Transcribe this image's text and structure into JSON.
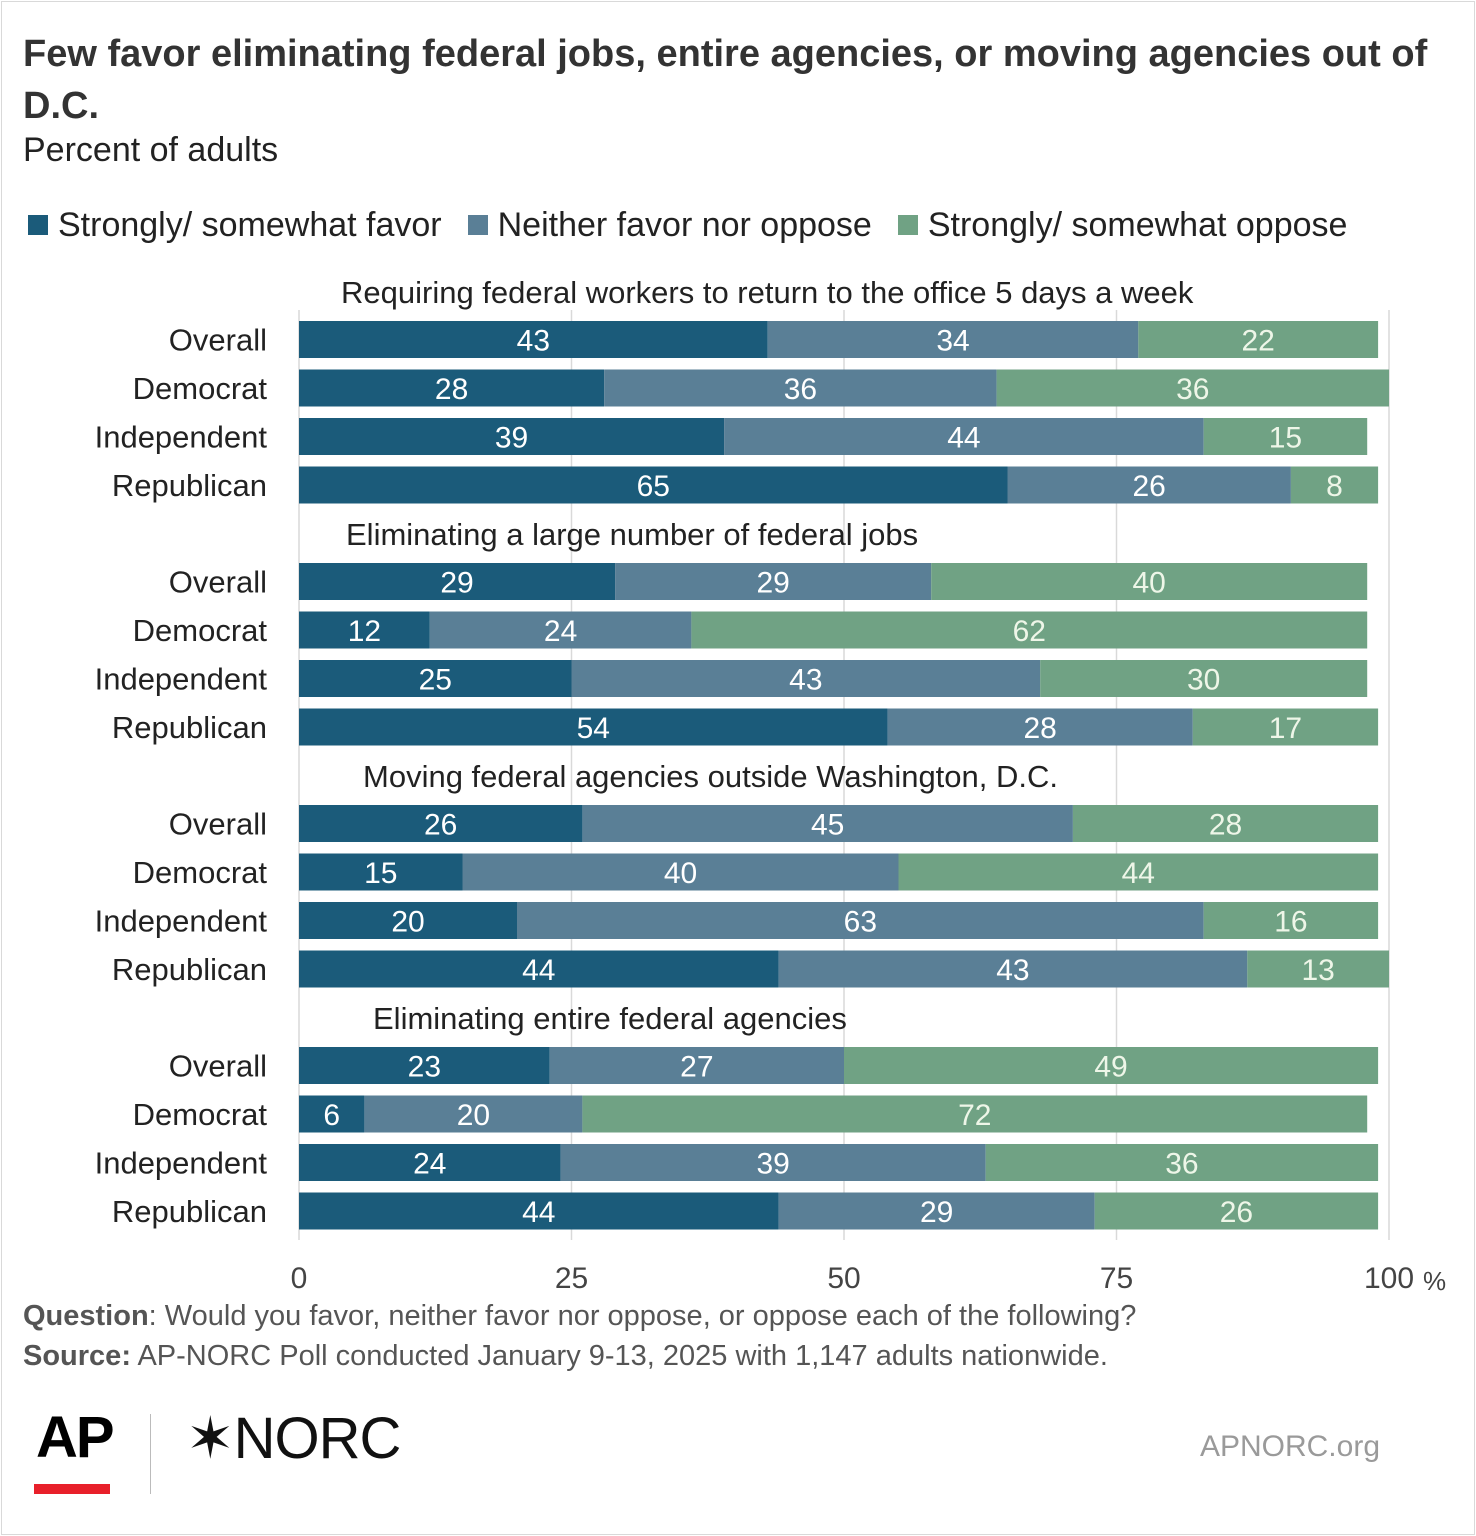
{
  "title": "Few favor eliminating federal jobs, entire agencies, or moving agencies out of D.C.",
  "subtitle": "Percent of adults",
  "colors": {
    "favor": "#1b5b7a",
    "neither": "#5a7f96",
    "oppose": "#70a284",
    "bar_label": "#ffffff",
    "oppose_label": "#eef6e8",
    "grid": "#d9d9d9"
  },
  "chart_data": {
    "type": "bar",
    "orientation": "horizontal",
    "stacked": true,
    "xlim": [
      0,
      100
    ],
    "x_ticks": [
      "0",
      "25",
      "50",
      "75",
      "100"
    ],
    "x_unit": "%",
    "grid": true,
    "legend_position": "top",
    "series": [
      {
        "name": "Strongly/ somewhat favor",
        "key": "favor"
      },
      {
        "name": "Neither favor nor oppose",
        "key": "neither"
      },
      {
        "name": "Strongly/ somewhat oppose",
        "key": "oppose"
      }
    ],
    "groups": [
      {
        "title": "Requiring federal workers to return to the office 5 days a week",
        "rows": [
          {
            "label": "Overall",
            "values": [
              43,
              34,
              22
            ]
          },
          {
            "label": "Democrat",
            "values": [
              28,
              36,
              36
            ]
          },
          {
            "label": "Independent",
            "values": [
              39,
              44,
              15
            ]
          },
          {
            "label": "Republican",
            "values": [
              65,
              26,
              8
            ]
          }
        ]
      },
      {
        "title": "Eliminating a large number of federal jobs",
        "rows": [
          {
            "label": "Overall",
            "values": [
              29,
              29,
              40
            ]
          },
          {
            "label": "Democrat",
            "values": [
              12,
              24,
              62
            ]
          },
          {
            "label": "Independent",
            "values": [
              25,
              43,
              30
            ]
          },
          {
            "label": "Republican",
            "values": [
              54,
              28,
              17
            ]
          }
        ]
      },
      {
        "title": "Moving federal agencies outside Washington, D.C.",
        "rows": [
          {
            "label": "Overall",
            "values": [
              26,
              45,
              28
            ]
          },
          {
            "label": "Democrat",
            "values": [
              15,
              40,
              44
            ]
          },
          {
            "label": "Independent",
            "values": [
              20,
              63,
              16
            ]
          },
          {
            "label": "Republican",
            "values": [
              44,
              43,
              13
            ]
          }
        ]
      },
      {
        "title": "Eliminating entire federal agencies",
        "rows": [
          {
            "label": "Overall",
            "values": [
              23,
              27,
              49
            ]
          },
          {
            "label": "Democrat",
            "values": [
              6,
              20,
              72
            ]
          },
          {
            "label": "Independent",
            "values": [
              24,
              39,
              36
            ]
          },
          {
            "label": "Republican",
            "values": [
              44,
              29,
              26
            ]
          }
        ]
      }
    ]
  },
  "footer": {
    "question_label": "Question",
    "question_text": ": Would you favor, neither favor nor oppose, or oppose each of the following?",
    "source_label": "Source:",
    "source_text": " AP-NORC Poll conducted January 9-13, 2025 with 1,147 adults nationwide."
  },
  "logos": {
    "ap": "AP",
    "norc": "NORC",
    "site": "APNORC.org"
  }
}
